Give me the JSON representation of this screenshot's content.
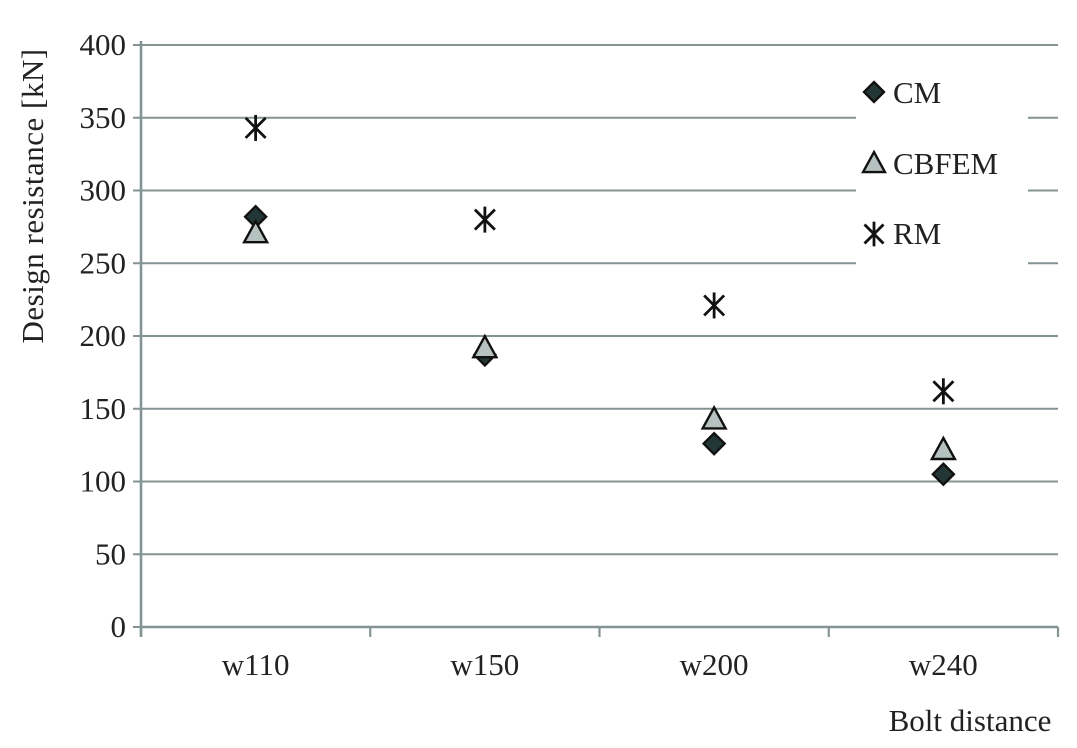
{
  "chart_data": {
    "type": "scatter",
    "title": "",
    "xlabel": "Bolt distance",
    "ylabel": "Design resistance [kN]",
    "categories": [
      "w110",
      "w150",
      "w200",
      "w240"
    ],
    "series": [
      {
        "name": "CM",
        "marker": "diamond",
        "marker_fill": "#243737",
        "values": [
          282,
          187,
          126,
          105
        ]
      },
      {
        "name": "CBFEM",
        "marker": "triangle",
        "marker_fill": "#b6c2c0",
        "values": [
          271,
          192,
          143,
          122
        ]
      },
      {
        "name": "RM",
        "marker": "asterisk",
        "marker_fill": "#111111",
        "values": [
          343,
          280,
          221,
          162
        ]
      }
    ],
    "ylim": [
      0,
      400
    ],
    "yticks": [
      0,
      50,
      100,
      150,
      200,
      250,
      300,
      350,
      400
    ],
    "grid": "horizontal",
    "legend_position": "inside-top-right"
  },
  "colors": {
    "grid": "#849494",
    "axis": "#849494",
    "text": "#222222",
    "marker_stroke": "#111111",
    "background": "#ffffff"
  }
}
